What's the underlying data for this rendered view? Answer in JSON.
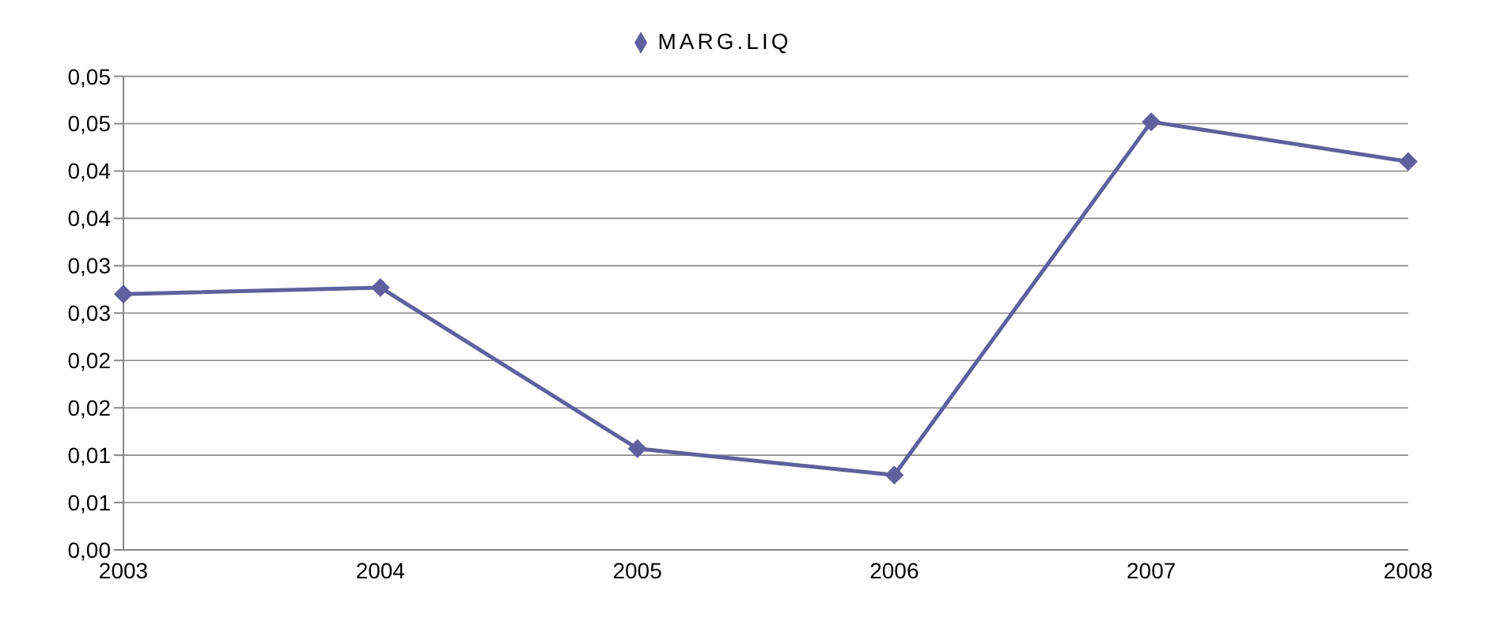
{
  "chart_data": {
    "type": "line",
    "categories": [
      "2003",
      "2004",
      "2005",
      "2006",
      "2007",
      "2008"
    ],
    "series": [
      {
        "name": "MARG.LIQ",
        "color": "#60609e",
        "values": [
          0.027,
          0.0277,
          0.0107,
          0.0079,
          0.0452,
          0.041
        ]
      }
    ],
    "ylim": [
      0,
      0.05
    ],
    "yticks": [
      {
        "value": 0,
        "label": "0,00"
      },
      {
        "value": 0.005,
        "label": "0,01"
      },
      {
        "value": 0.01,
        "label": "0,01"
      },
      {
        "value": 0.015,
        "label": "0,02"
      },
      {
        "value": 0.02,
        "label": "0,02"
      },
      {
        "value": 0.025,
        "label": "0,03"
      },
      {
        "value": 0.03,
        "label": "0,03"
      },
      {
        "value": 0.035,
        "label": "0,04"
      },
      {
        "value": 0.04,
        "label": "0,04"
      },
      {
        "value": 0.045,
        "label": "0,05"
      },
      {
        "value": 0.05,
        "label": "0,05"
      }
    ],
    "grid": "y",
    "legend": "top",
    "marker": "diamond",
    "line_style": "solid"
  }
}
